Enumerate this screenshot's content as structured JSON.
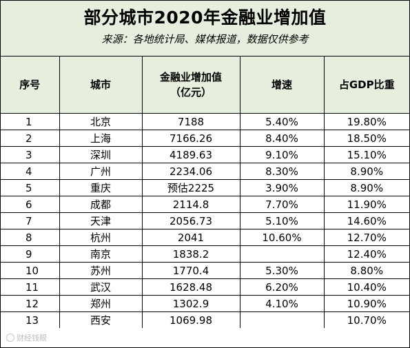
{
  "header": {
    "title": "部分城市2020年金融业增加值",
    "subtitle": "来源：各地统计局、媒体报道，数据仅供参考"
  },
  "table": {
    "columns": [
      "序号",
      "城市",
      "金融业增加值",
      "（亿元）",
      "增速",
      "占GDP比重"
    ],
    "rows": [
      {
        "no": "1",
        "city": "北京",
        "value": "7188",
        "growth": "5.40%",
        "share": "19.80%"
      },
      {
        "no": "2",
        "city": "上海",
        "value": "7166.26",
        "growth": "8.40%",
        "share": "18.50%"
      },
      {
        "no": "3",
        "city": "深圳",
        "value": "4189.63",
        "growth": "9.10%",
        "share": "15.10%"
      },
      {
        "no": "4",
        "city": "广州",
        "value": "2234.06",
        "growth": "8.30%",
        "share": "8.90%"
      },
      {
        "no": "5",
        "city": "重庆",
        "value": "预估2225",
        "growth": "3.90%",
        "share": "8.90%"
      },
      {
        "no": "6",
        "city": "成都",
        "value": "2114.8",
        "growth": "7.70%",
        "share": "11.90%"
      },
      {
        "no": "7",
        "city": "天津",
        "value": "2056.73",
        "growth": "5.10%",
        "share": "14.60%"
      },
      {
        "no": "8",
        "city": "杭州",
        "value": "2041",
        "growth": "10.60%",
        "share": "12.70%"
      },
      {
        "no": "9",
        "city": "南京",
        "value": "1838.2",
        "growth": "",
        "share": "12.40%"
      },
      {
        "no": "10",
        "city": "苏州",
        "value": "1770.4",
        "growth": "5.30%",
        "share": "8.80%"
      },
      {
        "no": "11",
        "city": "武汉",
        "value": "1628.48",
        "growth": "6.20%",
        "share": "10.40%"
      },
      {
        "no": "12",
        "city": "郑州",
        "value": "1302.9",
        "growth": "4.10%",
        "share": "10.90%"
      },
      {
        "no": "13",
        "city": "西安",
        "value": "1069.98",
        "growth": "",
        "share": "10.70%"
      }
    ]
  },
  "watermark": {
    "icon": "camera-icon",
    "text": "财经钱眼"
  }
}
